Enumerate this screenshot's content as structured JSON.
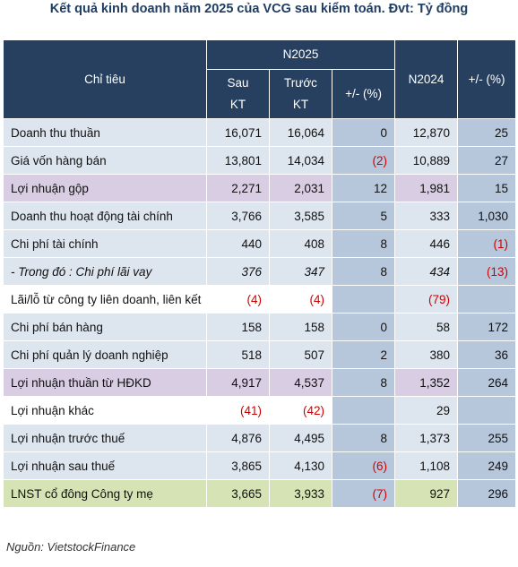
{
  "title": "Kết quả kinh doanh năm 2025 của VCG sau kiểm toán. Đvt: Tỷ đồng",
  "header": {
    "chi_tieu": "Chỉ tiêu",
    "n2025": "N2025",
    "sau_kt_1": "Sau",
    "sau_kt_2": "KT",
    "truoc_kt_1": "Trước",
    "truoc_kt_2": "KT",
    "change_pct": "+/- (%)",
    "n2024": "N2024",
    "change_pct2": "+/- (%)"
  },
  "rows": [
    {
      "label": "Doanh thu thuần",
      "sau_kt": "16,071",
      "truoc_kt": "16,064",
      "chg1": "0",
      "n2024": "12,870",
      "chg2": "25"
    },
    {
      "label": "Giá vốn hàng bán",
      "sau_kt": "13,801",
      "truoc_kt": "14,034",
      "chg1": "(2)",
      "n2024": "10,889",
      "chg2": "27"
    },
    {
      "label": "Lợi nhuận gộp",
      "sau_kt": "2,271",
      "truoc_kt": "2,031",
      "chg1": "12",
      "n2024": "1,981",
      "chg2": "15"
    },
    {
      "label": "Doanh thu hoạt động tài chính",
      "sau_kt": "3,766",
      "truoc_kt": "3,585",
      "chg1": "5",
      "n2024": "333",
      "chg2": "1,030"
    },
    {
      "label": "Chi phí tài chính",
      "sau_kt": "440",
      "truoc_kt": "408",
      "chg1": "8",
      "n2024": "446",
      "chg2": "(1)"
    },
    {
      "label": "- Trong đó : Chi phí lãi vay",
      "sau_kt": "376",
      "truoc_kt": "347",
      "chg1": "8",
      "n2024": "434",
      "chg2": "(13)"
    },
    {
      "label": "Lãi/lỗ từ công ty liên doanh, liên kết",
      "sau_kt": "(4)",
      "truoc_kt": "(4)",
      "chg1": "",
      "n2024": "(79)",
      "chg2": ""
    },
    {
      "label": "Chi phí bán hàng",
      "sau_kt": "158",
      "truoc_kt": "158",
      "chg1": "0",
      "n2024": "58",
      "chg2": "172"
    },
    {
      "label": "Chi phí quản lý doanh nghiệp",
      "sau_kt": "518",
      "truoc_kt": "507",
      "chg1": "2",
      "n2024": "380",
      "chg2": "36"
    },
    {
      "label": "Lợi nhuận thuần từ HĐKD",
      "sau_kt": "4,917",
      "truoc_kt": "4,537",
      "chg1": "8",
      "n2024": "1,352",
      "chg2": "264"
    },
    {
      "label": "Lợi nhuận khác",
      "sau_kt": "(41)",
      "truoc_kt": "(42)",
      "chg1": "",
      "n2024": "29",
      "chg2": ""
    },
    {
      "label": "Lợi nhuận trước thuế",
      "sau_kt": "4,876",
      "truoc_kt": "4,495",
      "chg1": "8",
      "n2024": "1,373",
      "chg2": "255"
    },
    {
      "label": "Lợi nhuận sau thuế",
      "sau_kt": "3,865",
      "truoc_kt": "4,130",
      "chg1": "(6)",
      "n2024": "1,108",
      "chg2": "249"
    },
    {
      "label": "LNST cổ đông Công ty mẹ",
      "sau_kt": "3,665",
      "truoc_kt": "3,933",
      "chg1": "(7)",
      "n2024": "927",
      "chg2": "296"
    }
  ],
  "source": "Nguồn: VietstockFinance",
  "colors": {
    "header_bg": "#27405f",
    "row_bg": "#dde5ee",
    "change_col_bg": "#b6c7dc",
    "gross_profit_bg": "#d8cde3",
    "net_profit_bg": "#d5e3b5",
    "negative_text": "#d10000"
  }
}
